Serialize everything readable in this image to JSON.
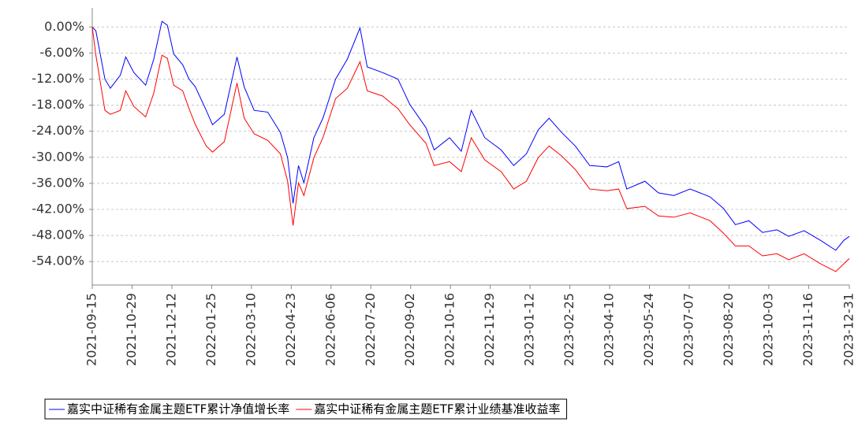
{
  "chart_data": {
    "type": "line",
    "x": [
      "2021-09-15",
      "2021-09-19",
      "2021-09-29",
      "2021-10-05",
      "2021-10-16",
      "2021-10-22",
      "2021-10-31",
      "2021-11-13",
      "2021-11-22",
      "2021-12-01",
      "2021-12-07",
      "2021-12-14",
      "2021-12-24",
      "2021-12-31",
      "2022-01-07",
      "2022-01-19",
      "2022-01-26",
      "2022-02-08",
      "2022-02-22",
      "2022-03-02",
      "2022-03-13",
      "2022-03-28",
      "2022-04-11",
      "2022-04-19",
      "2022-04-25",
      "2022-05-01",
      "2022-05-07",
      "2022-05-18",
      "2022-05-28",
      "2022-06-11",
      "2022-06-24",
      "2022-07-08",
      "2022-07-16",
      "2022-08-02",
      "2022-08-19",
      "2022-09-01",
      "2022-09-19",
      "2022-09-28",
      "2022-10-15",
      "2022-10-28",
      "2022-11-08",
      "2022-11-23",
      "2022-12-11",
      "2022-12-25",
      "2023-01-08",
      "2023-01-21",
      "2023-02-02",
      "2023-02-16",
      "2023-03-03",
      "2023-03-19",
      "2023-04-07",
      "2023-04-20",
      "2023-04-29",
      "2023-05-19",
      "2023-06-03",
      "2023-06-20",
      "2023-07-08",
      "2023-07-30",
      "2023-08-14",
      "2023-08-27",
      "2023-09-11",
      "2023-09-26",
      "2023-10-12",
      "2023-10-25",
      "2023-11-11",
      "2023-11-29",
      "2023-12-16",
      "2023-12-25",
      "2023-12-31"
    ],
    "series": [
      {
        "name": "嘉实中证稀有金属主题ETF累计净值增长率",
        "color": "#0000ff",
        "values": [
          0,
          -0.9,
          -12.0,
          -14.1,
          -11.1,
          -6.9,
          -10.5,
          -13.4,
          -7.4,
          1.3,
          0.4,
          -6.2,
          -8.7,
          -12.0,
          -13.8,
          -19.2,
          -22.5,
          -20.1,
          -6.9,
          -13.8,
          -19.2,
          -19.6,
          -24.3,
          -30.1,
          -40.6,
          -31.9,
          -35.9,
          -25.5,
          -21.0,
          -12.0,
          -7.4,
          -0.2,
          -9.2,
          -10.5,
          -12.0,
          -17.8,
          -23.2,
          -28.3,
          -25.5,
          -28.6,
          -19.2,
          -25.5,
          -28.3,
          -31.9,
          -29.2,
          -23.7,
          -21.0,
          -24.3,
          -27.4,
          -31.9,
          -32.2,
          -31.0,
          -37.3,
          -35.5,
          -38.2,
          -38.8,
          -37.3,
          -39.1,
          -41.8,
          -45.5,
          -44.6,
          -47.3,
          -46.7,
          -48.2,
          -46.9,
          -49.1,
          -51.4,
          -49.1,
          -48.2
        ]
      },
      {
        "name": "嘉实中证稀有金属主题ETF累计业绩基准收益率",
        "color": "#ff0000",
        "values": [
          0,
          -6.5,
          -19.2,
          -20.1,
          -19.2,
          -14.7,
          -18.3,
          -20.7,
          -15.2,
          -6.5,
          -7.2,
          -13.4,
          -14.7,
          -18.8,
          -22.5,
          -27.4,
          -28.8,
          -26.4,
          -12.9,
          -21.0,
          -24.6,
          -26.1,
          -29.2,
          -35.5,
          -45.7,
          -35.9,
          -38.8,
          -30.1,
          -25.5,
          -16.5,
          -14.1,
          -8.0,
          -14.7,
          -15.9,
          -18.8,
          -22.5,
          -26.8,
          -31.9,
          -31.0,
          -33.3,
          -25.5,
          -30.6,
          -33.3,
          -37.3,
          -35.5,
          -30.1,
          -27.4,
          -29.7,
          -32.8,
          -37.3,
          -37.7,
          -37.3,
          -41.8,
          -41.3,
          -43.5,
          -43.8,
          -42.8,
          -44.6,
          -47.5,
          -50.4,
          -50.4,
          -52.7,
          -52.2,
          -53.6,
          -52.2,
          -54.5,
          -56.3,
          -54.5,
          -53.3
        ]
      }
    ],
    "xlim": [
      "2021-09-15",
      "2023-12-31"
    ],
    "xticks": [
      "2021-09-15",
      "2021-10-29",
      "2021-12-12",
      "2022-01-25",
      "2022-03-10",
      "2022-04-23",
      "2022-06-06",
      "2022-07-20",
      "2022-09-02",
      "2022-10-16",
      "2022-11-29",
      "2023-01-12",
      "2023-02-25",
      "2023-04-10",
      "2023-05-24",
      "2023-07-07",
      "2023-08-20",
      "2023-10-03",
      "2023-11-16",
      "2023-12-31"
    ],
    "ylim": [
      -59.4,
      4.4
    ],
    "yticks": [
      {
        "value": 0,
        "label": "0.00%"
      },
      {
        "value": -6,
        "label": "-6.00%"
      },
      {
        "value": -12,
        "label": "-12.00%"
      },
      {
        "value": -18,
        "label": "-18.00%"
      },
      {
        "value": -24,
        "label": "-24.00%"
      },
      {
        "value": -30,
        "label": "-30.00%"
      },
      {
        "value": -36,
        "label": "-36.00%"
      },
      {
        "value": -42,
        "label": "-42.00%"
      },
      {
        "value": -48,
        "label": "-48.00%"
      },
      {
        "value": -54,
        "label": "-54.00%"
      }
    ],
    "grid": true,
    "legend": "bottom"
  }
}
